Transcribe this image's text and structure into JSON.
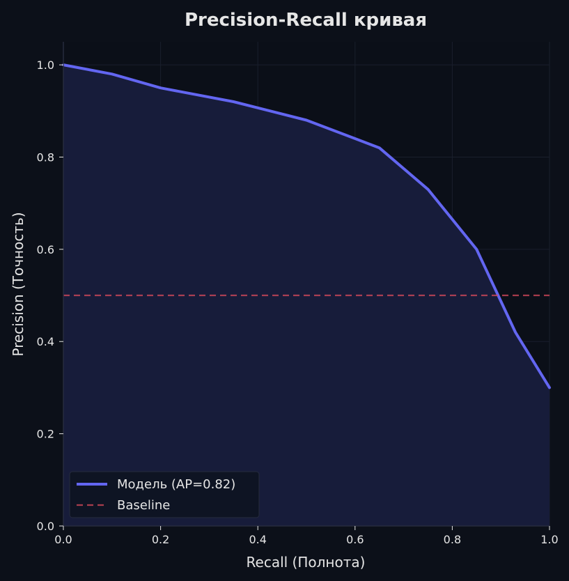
{
  "chart_data": {
    "type": "line",
    "title": "Precision-Recall кривая",
    "xlabel": "Recall (Полнота)",
    "ylabel": "Precision (Точность)",
    "xlim": [
      0,
      1
    ],
    "ylim": [
      0,
      1.05
    ],
    "xticks": [
      "0.0",
      "0.2",
      "0.4",
      "0.6",
      "0.8",
      "1.0"
    ],
    "yticks": [
      "0.0",
      "0.2",
      "0.4",
      "0.6",
      "0.8",
      "1.0"
    ],
    "grid": true,
    "legend_position": "lower-left",
    "series": [
      {
        "name": "Модель (AP=0.82)",
        "color": "#6366f1",
        "style": "solid",
        "fill": true,
        "x": [
          0.0,
          0.1,
          0.2,
          0.35,
          0.5,
          0.65,
          0.75,
          0.85,
          0.93,
          1.0
        ],
        "y": [
          1.0,
          0.98,
          0.95,
          0.92,
          0.88,
          0.82,
          0.73,
          0.6,
          0.42,
          0.3
        ]
      },
      {
        "name": "Baseline",
        "color": "#dc4b5c",
        "style": "dashed",
        "fill": false,
        "x": [
          0.0,
          1.0
        ],
        "y": [
          0.5,
          0.5
        ]
      }
    ]
  },
  "colors": {
    "background": "#0c1019",
    "plot_background": "#0b0f18",
    "grid": "#1a1f2c",
    "spine": "#262b3e",
    "text": "#e6e6e6",
    "fill": "#171c3a",
    "legend_background": "#0e1422",
    "legend_border": "#262b3e"
  }
}
